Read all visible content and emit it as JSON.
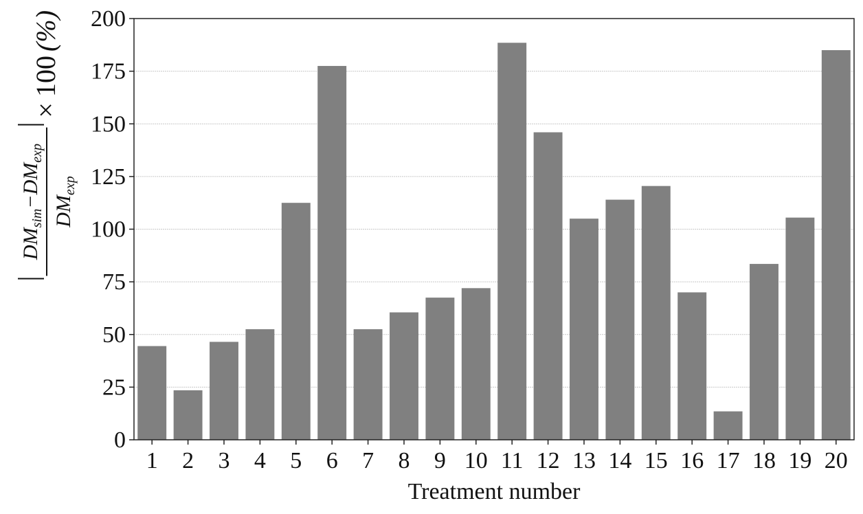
{
  "chart_data": {
    "type": "bar",
    "xlabel": "Treatment number",
    "ylabel": {
      "numerator": "DM_sim − DM_exp",
      "denominator": "DM_exp",
      "multiplier": "× 100 (%)",
      "numerator_parts": [
        "DM",
        "sim",
        "−DM",
        "exp"
      ],
      "denominator_parts": [
        "DM",
        "exp"
      ],
      "times_text": "×",
      "hundred_text": "100",
      "percent_text": "(%)"
    },
    "categories": [
      "1",
      "2",
      "3",
      "4",
      "5",
      "6",
      "7",
      "8",
      "9",
      "10",
      "11",
      "12",
      "13",
      "14",
      "15",
      "16",
      "17",
      "18",
      "19",
      "20"
    ],
    "values": [
      44.5,
      23.5,
      46.5,
      52.5,
      112.5,
      177.5,
      52.5,
      60.5,
      67.5,
      72,
      188.5,
      146,
      105,
      114,
      120.5,
      70,
      13.5,
      83.5,
      105.5,
      185
    ],
    "yticks": [
      "0",
      "25",
      "50",
      "75",
      "100",
      "125",
      "150",
      "175",
      "200"
    ],
    "ylim": [
      0,
      200
    ],
    "grid": "horizontal",
    "bar_color": "#808080",
    "grid_color": "#c8c8c8"
  }
}
